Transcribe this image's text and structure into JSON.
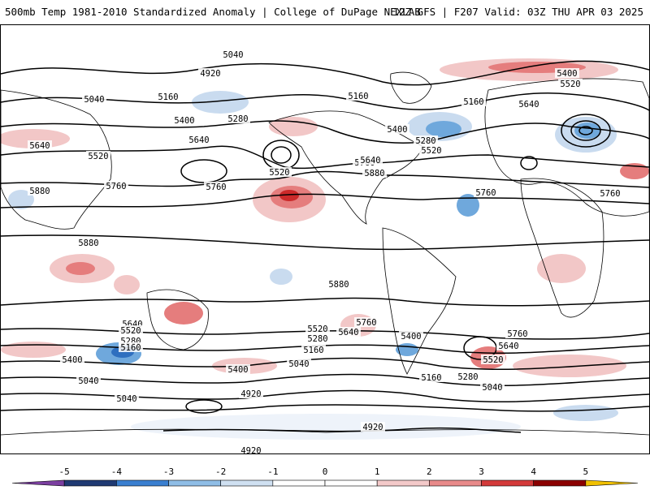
{
  "header": {
    "title_left": "500mb Temp 1981-2010 Standardized Anomaly | College of DuPage NEXLAB",
    "title_right": "12Z GFS | F207 Valid: 03Z THU APR 03 2025"
  },
  "map": {
    "contour_labels": [
      "5040",
      "4920",
      "5040",
      "5160",
      "5280",
      "5400",
      "5160",
      "5400",
      "5280",
      "5520",
      "5400",
      "5520",
      "5640",
      "5160",
      "5640",
      "5520",
      "5640",
      "5520",
      "5760",
      "5880",
      "5760",
      "5760",
      "5640",
      "5760",
      "5880",
      "5880",
      "5880",
      "5760",
      "5640",
      "5520",
      "5280",
      "5160",
      "5400",
      "5040",
      "5040",
      "4920",
      "5520",
      "5280",
      "5160",
      "5040",
      "5640",
      "5760",
      "5400",
      "5160",
      "5280",
      "5040",
      "4920",
      "5640",
      "5760",
      "5520",
      "5400",
      "4920"
    ],
    "colors": {
      "cold_strong": "#2f6fbf",
      "cold_mid": "#6fa8dc",
      "cold_light": "#c9dbef",
      "warm_light": "#f2c7c7",
      "warm_mid": "#e57d7d",
      "warm_strong": "#cc2a2a",
      "warm_max": "#8b0000",
      "coastline": "#000000"
    }
  },
  "colorbar": {
    "ticks": [
      "-5",
      "-4",
      "-3",
      "-2",
      "-1",
      "0",
      "1",
      "2",
      "3",
      "4",
      "5"
    ],
    "colors": [
      "#7b3fa0",
      "#1f3a73",
      "#3a7fd0",
      "#8fbde6",
      "#cfe0f1",
      "#ffffff",
      "#ffffff",
      "#f3c9c9",
      "#e88a8a",
      "#d33a3a",
      "#8b0000",
      "#f0c000"
    ]
  }
}
